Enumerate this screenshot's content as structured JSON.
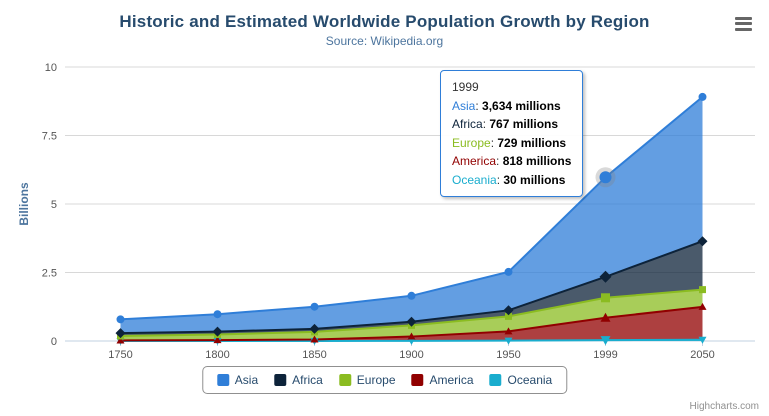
{
  "header": {
    "title": "Historic and Estimated Worldwide Population Growth by Region",
    "subtitle": "Source: Wikipedia.org"
  },
  "chart_data": {
    "type": "area",
    "stacked": true,
    "title": "Historic and Estimated Worldwide Population Growth by Region",
    "subtitle": "Source: Wikipedia.org",
    "categories": [
      "1750",
      "1800",
      "1850",
      "1900",
      "1950",
      "1999",
      "2050"
    ],
    "unit": "millions",
    "series": [
      {
        "name": "Asia",
        "color": "#2f7ed8",
        "marker": "circle",
        "values": [
          502,
          635,
          809,
          947,
          1402,
          3634,
          5268
        ]
      },
      {
        "name": "Africa",
        "color": "#0d233a",
        "marker": "diamond",
        "values": [
          106,
          107,
          111,
          133,
          221,
          767,
          1766
        ]
      },
      {
        "name": "Europe",
        "color": "#8bbc21",
        "marker": "square",
        "values": [
          163,
          203,
          276,
          408,
          547,
          729,
          628
        ]
      },
      {
        "name": "America",
        "color": "#910000",
        "marker": "triangle",
        "values": [
          18,
          31,
          54,
          156,
          339,
          818,
          1201
        ]
      },
      {
        "name": "Oceania",
        "color": "#1aadce",
        "marker": "triangle-down",
        "values": [
          2,
          2,
          2,
          6,
          13,
          30,
          46
        ]
      }
    ],
    "xlabel": "",
    "ylabel": "Billions",
    "ylim": [
      0,
      10
    ],
    "yticks": [
      "0",
      "2.5",
      "5",
      "7.5",
      "10"
    ],
    "grid": true,
    "legend_position": "bottom"
  },
  "tooltip": {
    "category": "1999",
    "hover_series": "Asia",
    "hover_index": 5,
    "rows": [
      {
        "name": "Asia",
        "value": "3,634 millions"
      },
      {
        "name": "Africa",
        "value": "767 millions"
      },
      {
        "name": "Europe",
        "value": "729 millions"
      },
      {
        "name": "America",
        "value": "818 millions"
      },
      {
        "name": "Oceania",
        "value": "30 millions"
      }
    ]
  },
  "credits": {
    "label": "Highcharts.com"
  }
}
